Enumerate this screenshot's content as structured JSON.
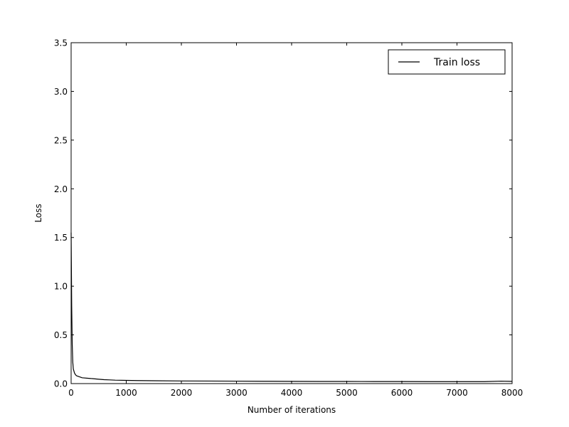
{
  "chart_data": {
    "type": "line",
    "title": "",
    "xlabel": "Number of iterations",
    "ylabel": "Loss",
    "xlim": [
      0,
      8000
    ],
    "ylim": [
      0,
      3.5
    ],
    "xticks": [
      0,
      1000,
      2000,
      3000,
      4000,
      5000,
      6000,
      7000,
      8000
    ],
    "yticks": [
      0.0,
      0.5,
      1.0,
      1.5,
      2.0,
      2.5,
      3.0,
      3.5
    ],
    "xtick_labels": [
      "0",
      "1000",
      "2000",
      "3000",
      "4000",
      "5000",
      "6000",
      "7000",
      "8000"
    ],
    "ytick_labels": [
      "0.0",
      "0.5",
      "1.0",
      "1.5",
      "2.0",
      "2.5",
      "3.0",
      "3.5"
    ],
    "grid": false,
    "legend_position": "top-right",
    "series": [
      {
        "name": "Train loss",
        "color": "#000000",
        "x": [
          0,
          10,
          20,
          30,
          40,
          60,
          80,
          100,
          150,
          200,
          300,
          400,
          500,
          600,
          700,
          800,
          1000,
          1200,
          1500,
          2000,
          2500,
          3000,
          3500,
          4000,
          4500,
          5000,
          5500,
          6000,
          6500,
          7000,
          7500,
          7800,
          8000
        ],
        "y": [
          1.55,
          0.8,
          0.4,
          0.22,
          0.15,
          0.11,
          0.09,
          0.08,
          0.07,
          0.06,
          0.055,
          0.05,
          0.045,
          0.04,
          0.038,
          0.035,
          0.033,
          0.031,
          0.029,
          0.027,
          0.026,
          0.025,
          0.024,
          0.023,
          0.022,
          0.022,
          0.021,
          0.021,
          0.02,
          0.02,
          0.02,
          0.025,
          0.023
        ]
      }
    ]
  }
}
